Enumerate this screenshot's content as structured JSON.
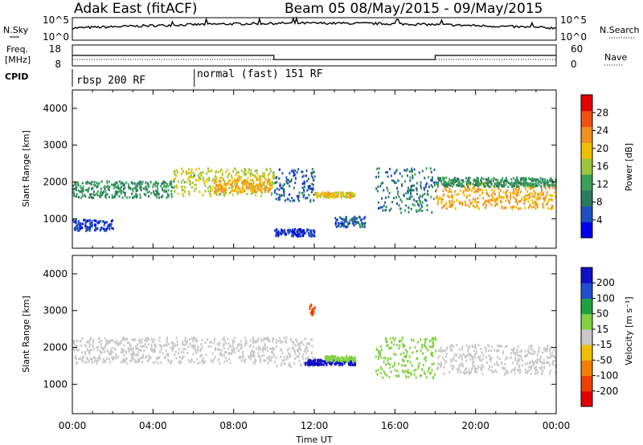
{
  "header": {
    "title_left": "Adak East (fitACF)",
    "title_right": "Beam 05 08/May/2015 - 09/May/2015"
  },
  "strips": {
    "nsky_label": "N.Sky",
    "nsky_ticks": [
      "10^5",
      "10^0"
    ],
    "nsearch_label": "N.Search",
    "nsearch_ticks": [
      "10^5",
      "10^0"
    ],
    "freq_label_1": "Freq.",
    "freq_label_2": "[MHz]",
    "freq_ticks": [
      "18",
      "8"
    ],
    "nave_label": "Nave",
    "nave_ticks": [
      "60",
      "0"
    ],
    "cpid_label": "CPID",
    "modes": [
      {
        "label": "rbsp 200 RF",
        "start_hour": 0
      },
      {
        "label": "normal (fast) 151 RF",
        "start_hour": 6.05
      }
    ]
  },
  "time_axis": {
    "label": "Time UT",
    "ticks": [
      "00:00",
      "04:00",
      "08:00",
      "12:00",
      "16:00",
      "20:00",
      "00:00"
    ],
    "range_hours": [
      0,
      24
    ]
  },
  "power_panel": {
    "ylabel": "Slant Range [km]",
    "yticks": [
      "1000",
      "2000",
      "3000",
      "4000"
    ],
    "colorbar_label": "Power [dB]",
    "colorbar_ticks": [
      "4",
      "8",
      "12",
      "16",
      "20",
      "24",
      "28"
    ],
    "colorbar_colors": [
      "#0000ee",
      "#2050c0",
      "#2a7a60",
      "#3aa05a",
      "#9cc640",
      "#f0c000",
      "#f09020",
      "#f05010",
      "#e00000"
    ]
  },
  "velocity_panel": {
    "ylabel": "Slant Range [km]",
    "yticks": [
      "1000",
      "2000",
      "3000",
      "4000"
    ],
    "colorbar_label": "Velocity [m s⁻¹]",
    "colorbar_ticks": [
      "200",
      "100",
      "50",
      "15",
      "-15",
      "-50",
      "-100",
      "-200"
    ],
    "colorbar_colors": [
      "#1010c8",
      "#2050d0",
      "#20a040",
      "#80d040",
      "#c8c8c8",
      "#f0c000",
      "#f08000",
      "#f04000",
      "#e00000"
    ]
  },
  "chart_data": {
    "type": "heatmap",
    "x_unit": "hours UT",
    "y_unit": "km",
    "ylim": [
      200,
      4500
    ],
    "power_scatter_bands": [
      {
        "t_start": 0,
        "t_end": 5,
        "range_low": 1600,
        "range_high": 2050,
        "power_db": 12
      },
      {
        "t_start": 5,
        "t_end": 10,
        "range_low": 1650,
        "range_high": 2400,
        "power_db": 18
      },
      {
        "t_start": 7,
        "t_end": 9.8,
        "range_low": 1750,
        "range_high": 2100,
        "power_db": 22
      },
      {
        "t_start": 10,
        "t_end": 12,
        "range_low": 1500,
        "range_high": 2400,
        "power_db": 8
      },
      {
        "t_start": 12,
        "t_end": 14,
        "range_low": 1600,
        "range_high": 1750,
        "power_db": 20
      },
      {
        "t_start": 13,
        "t_end": 14.5,
        "range_low": 800,
        "range_high": 1100,
        "power_db": 8
      },
      {
        "t_start": 15,
        "t_end": 18,
        "range_low": 1200,
        "range_high": 2400,
        "power_db": 10
      },
      {
        "t_start": 18,
        "t_end": 24,
        "range_low": 1300,
        "range_high": 2000,
        "power_db": 22
      },
      {
        "t_start": 18,
        "t_end": 24,
        "range_low": 1900,
        "range_high": 2150,
        "power_db": 12
      },
      {
        "t_start": 0,
        "t_end": 2,
        "range_low": 700,
        "range_high": 1000,
        "power_db": 6
      },
      {
        "t_start": 10,
        "t_end": 12,
        "range_low": 550,
        "range_high": 750,
        "power_db": 6
      }
    ],
    "velocity_scatter_bands": [
      {
        "t_start": 0,
        "t_end": 10,
        "range_low": 1600,
        "range_high": 2300,
        "velocity_ms": 0
      },
      {
        "t_start": 18,
        "t_end": 24,
        "range_low": 1300,
        "range_high": 2100,
        "velocity_ms": 0
      },
      {
        "t_start": 10,
        "t_end": 12,
        "range_low": 1500,
        "range_high": 2300,
        "velocity_ms": 0
      },
      {
        "t_start": 11.5,
        "t_end": 14,
        "range_low": 1550,
        "range_high": 1700,
        "velocity_ms": 200
      },
      {
        "t_start": 12.5,
        "t_end": 14,
        "range_low": 1650,
        "range_high": 1800,
        "velocity_ms": 40
      },
      {
        "t_start": 15,
        "t_end": 18,
        "range_low": 1200,
        "range_high": 2300,
        "velocity_ms": 30
      },
      {
        "t_start": 11.7,
        "t_end": 12,
        "range_low": 2900,
        "range_high": 3200,
        "velocity_ms": -200
      }
    ],
    "nsky_level": 1000,
    "freq_mhz": [
      {
        "t_start": 0,
        "t_end": 10,
        "value": 13
      },
      {
        "t_start": 10,
        "t_end": 18,
        "value": 11
      },
      {
        "t_start": 18,
        "t_end": 24,
        "value": 13
      }
    ]
  }
}
